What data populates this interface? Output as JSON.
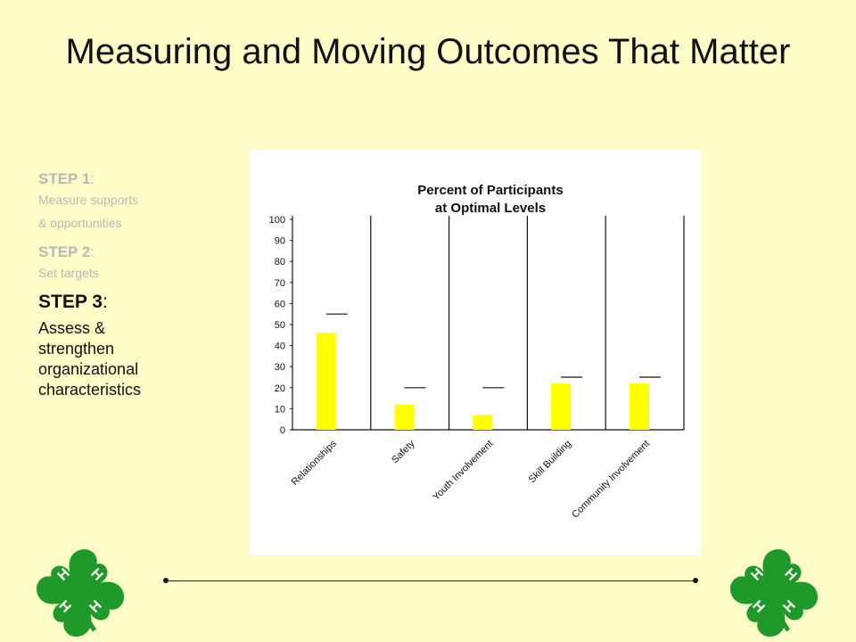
{
  "slide": {
    "title": "Measuring and Moving Outcomes That Matter"
  },
  "steps": [
    {
      "label": "STEP 1",
      "colon": ":",
      "desc": [
        "Measure supports",
        "& opportunities"
      ]
    },
    {
      "label": "STEP 2",
      "colon": ":",
      "desc": [
        "Set targets"
      ]
    },
    {
      "label": "STEP 3",
      "colon": ":",
      "desc": [
        "Assess &",
        "strengthen",
        "organizational",
        "characteristics"
      ]
    }
  ],
  "colors": {
    "background": "#fefdc7",
    "bar": "#ffff00",
    "clover": "#1f9a2a"
  },
  "logo": {
    "icon": "four-h-clover-icon",
    "letters": [
      "H",
      "H",
      "H",
      "H"
    ]
  },
  "chart_data": {
    "type": "bar",
    "title": "Percent of Participants",
    "subtitle": "at Optimal Levels",
    "categories": [
      "Relationships",
      "Safety",
      "Youth Involvement",
      "Skill Building",
      "Community Involvement"
    ],
    "series": [
      {
        "values": [
          46,
          12,
          7,
          22,
          22
        ]
      }
    ],
    "targets": [
      55,
      20,
      20,
      25,
      25
    ],
    "ylim": [
      0,
      100
    ],
    "yticks": [
      0,
      10,
      20,
      30,
      40,
      50,
      60,
      70,
      80,
      90,
      100
    ],
    "xlabel": "",
    "ylabel": "",
    "grid": false
  }
}
